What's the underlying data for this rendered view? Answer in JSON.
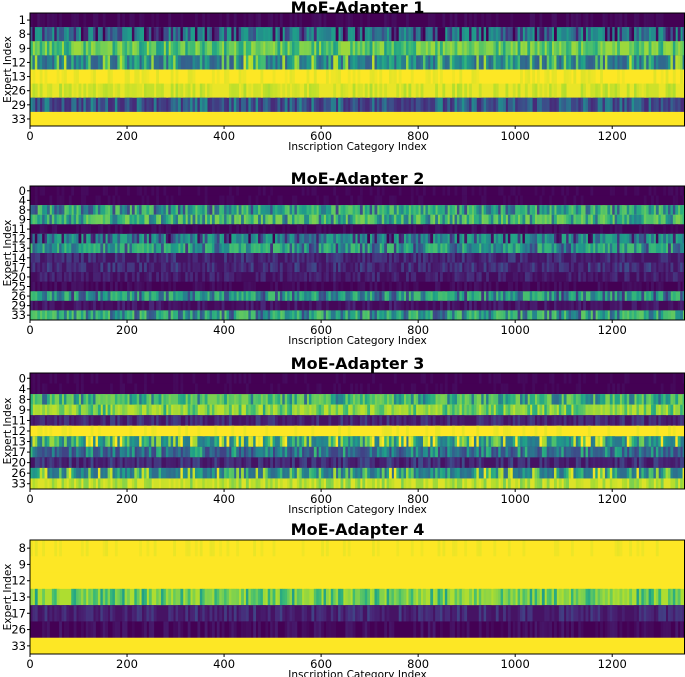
{
  "chart_data": [
    {
      "type": "heatmap",
      "title": "MoE-Adapter 1",
      "xlabel": "Inscription Category Index",
      "ylabel": "Expert Index",
      "xlim": [
        0,
        1350
      ],
      "xticks": [
        "0",
        "200",
        "400",
        "600",
        "800",
        "1000",
        "1200"
      ],
      "colormap": "viridis",
      "rows": [
        {
          "label": "1",
          "level": 0.0,
          "variation": 0.03
        },
        {
          "label": "8",
          "level": 0.55,
          "variation": 0.45
        },
        {
          "label": "9",
          "level": 0.85,
          "variation": 0.2
        },
        {
          "label": "12",
          "level": 0.3,
          "variation": 0.4
        },
        {
          "label": "13",
          "level": 1.0,
          "variation": 0.03
        },
        {
          "label": "26",
          "level": 0.97,
          "variation": 0.06
        },
        {
          "label": "29",
          "level": 0.12,
          "variation": 0.25
        },
        {
          "label": "33",
          "level": 1.0,
          "variation": 0.01
        }
      ]
    },
    {
      "type": "heatmap",
      "title": "MoE-Adapter 2",
      "xlabel": "Inscription Category Index",
      "ylabel": "Expert Index",
      "xlim": [
        0,
        1350
      ],
      "xticks": [
        "0",
        "200",
        "400",
        "600",
        "800",
        "1000",
        "1200"
      ],
      "colormap": "viridis",
      "rows": [
        {
          "label": "0",
          "level": 0.0,
          "variation": 0.02
        },
        {
          "label": "4",
          "level": 0.0,
          "variation": 0.02
        },
        {
          "label": "8",
          "level": 0.75,
          "variation": 0.35
        },
        {
          "label": "9",
          "level": 0.8,
          "variation": 0.3
        },
        {
          "label": "11",
          "level": 0.0,
          "variation": 0.03
        },
        {
          "label": "12",
          "level": 0.6,
          "variation": 0.4
        },
        {
          "label": "13",
          "level": 0.7,
          "variation": 0.35
        },
        {
          "label": "14",
          "level": 0.05,
          "variation": 0.1
        },
        {
          "label": "17",
          "level": 0.05,
          "variation": 0.12
        },
        {
          "label": "20",
          "level": 0.03,
          "variation": 0.08
        },
        {
          "label": "25",
          "level": 0.0,
          "variation": 0.04
        },
        {
          "label": "26",
          "level": 0.7,
          "variation": 0.35
        },
        {
          "label": "29",
          "level": 0.02,
          "variation": 0.06
        },
        {
          "label": "33",
          "level": 0.75,
          "variation": 0.35
        }
      ]
    },
    {
      "type": "heatmap",
      "title": "MoE-Adapter 3",
      "xlabel": "Inscription Category Index",
      "ylabel": "Expert Index",
      "xlim": [
        0,
        1350
      ],
      "xticks": [
        "0",
        "200",
        "400",
        "600",
        "800",
        "1000",
        "1200"
      ],
      "colormap": "viridis",
      "rows": [
        {
          "label": "0",
          "level": 0.0,
          "variation": 0.02
        },
        {
          "label": "4",
          "level": 0.0,
          "variation": 0.02
        },
        {
          "label": "8",
          "level": 0.8,
          "variation": 0.3
        },
        {
          "label": "9",
          "level": 0.9,
          "variation": 0.2
        },
        {
          "label": "11",
          "level": 0.05,
          "variation": 0.1
        },
        {
          "label": "12",
          "level": 1.0,
          "variation": 0.02
        },
        {
          "label": "13",
          "level": 0.4,
          "variation": 0.45
        },
        {
          "label": "17",
          "level": 0.2,
          "variation": 0.3
        },
        {
          "label": "20",
          "level": 0.05,
          "variation": 0.12
        },
        {
          "label": "26",
          "level": 0.35,
          "variation": 0.4
        },
        {
          "label": "33",
          "level": 0.95,
          "variation": 0.1
        }
      ]
    },
    {
      "type": "heatmap",
      "title": "MoE-Adapter 4",
      "xlabel": "Inscription Category Index",
      "ylabel": "Expert Index",
      "xlim": [
        0,
        1350
      ],
      "xticks": [
        "0",
        "200",
        "400",
        "600",
        "800",
        "1000",
        "1200"
      ],
      "colormap": "viridis",
      "rows": [
        {
          "label": "8",
          "level": 1.0,
          "variation": 0.02
        },
        {
          "label": "9",
          "level": 1.0,
          "variation": 0.01
        },
        {
          "label": "12",
          "level": 1.0,
          "variation": 0.01
        },
        {
          "label": "13",
          "level": 0.88,
          "variation": 0.2
        },
        {
          "label": "17",
          "level": 0.05,
          "variation": 0.1
        },
        {
          "label": "26",
          "level": 0.0,
          "variation": 0.05
        },
        {
          "label": "33",
          "level": 1.0,
          "variation": 0.01
        }
      ]
    }
  ]
}
